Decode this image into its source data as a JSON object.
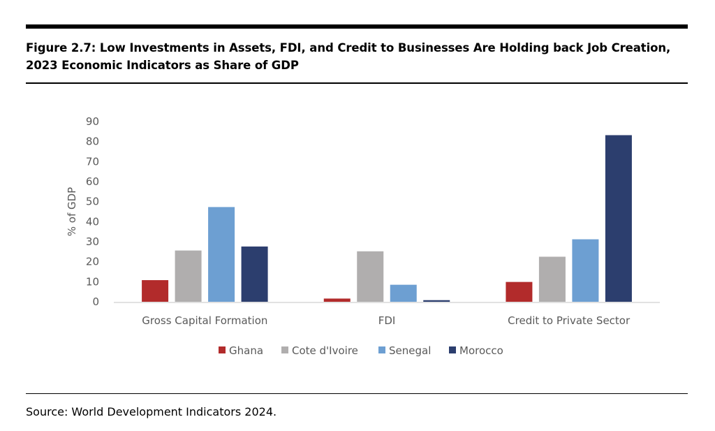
{
  "figure": {
    "title_line1": "Figure 2.7: Low Investments in Assets, FDI, and Credit to Businesses Are Holding back Job Creation,",
    "title_line2": "2023 Economic Indicators as Share of GDP",
    "source": "Source: World Development Indicators 2024."
  },
  "chart_data": {
    "type": "bar",
    "categories": [
      "Gross Capital Formation",
      "FDI",
      "Credit to Private Sector"
    ],
    "series": [
      {
        "name": "Ghana",
        "color": "#b22b2b",
        "values": [
          10.8,
          1.6,
          9.9
        ]
      },
      {
        "name": "Cote d'Ivoire",
        "color": "#b0aeae",
        "values": [
          25.6,
          25.2,
          22.5
        ]
      },
      {
        "name": "Senegal",
        "color": "#6d9fd2",
        "values": [
          47.3,
          8.5,
          31.2
        ]
      },
      {
        "name": "Morocco",
        "color": "#2c3e6e",
        "values": [
          27.6,
          0.8,
          83.2
        ]
      }
    ],
    "ylabel": "% of GDP",
    "ylim": [
      0,
      90
    ],
    "yticks": [
      0,
      10,
      20,
      30,
      40,
      50,
      60,
      70,
      80,
      90
    ],
    "grid": false,
    "legend_position": "bottom"
  }
}
